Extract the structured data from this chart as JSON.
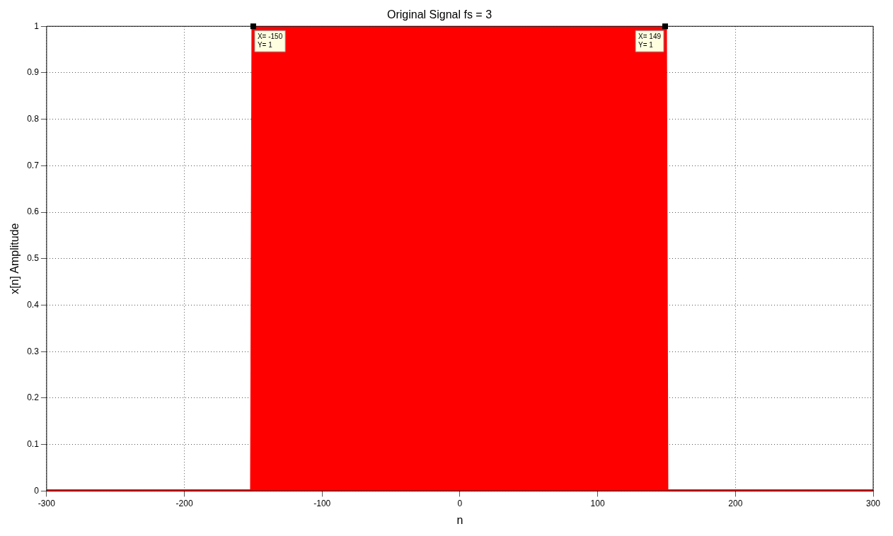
{
  "chart_data": {
    "type": "area",
    "title": "Original Signal fs = 3",
    "xlabel": "n",
    "ylabel": "x[n] Amplitude",
    "x": [
      -300,
      -151,
      -150,
      149,
      150,
      300
    ],
    "values": [
      0,
      0,
      1,
      1,
      0,
      0
    ],
    "color": "#ff0000",
    "xlim": [
      -300,
      300
    ],
    "xticks": [
      -300,
      -200,
      -100,
      0,
      100,
      200,
      300
    ],
    "ylim": [
      0,
      1
    ],
    "yticks": [
      0,
      0.1,
      0.2,
      0.3,
      0.4,
      0.5,
      0.6,
      0.7,
      0.8,
      0.9,
      1
    ],
    "grid": true,
    "legend": false,
    "annotations": [
      {
        "text": "X= -150\nY= 1",
        "x": -150,
        "y": 1
      },
      {
        "text": "X= 149\nY= 1",
        "x": 149,
        "y": 1
      }
    ]
  }
}
